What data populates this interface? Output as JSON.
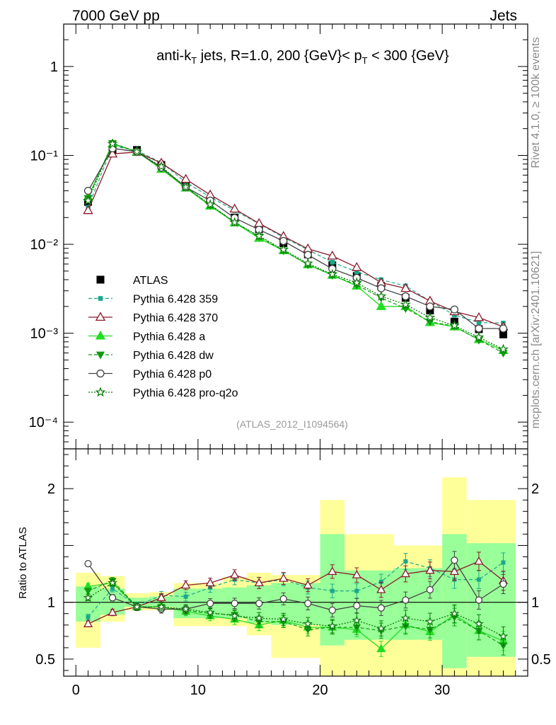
{
  "header": {
    "left": "7000 GeV pp",
    "right": "Jets"
  },
  "side_texts": {
    "rivet": "Rivet 4.1.0, ≥ 100k events",
    "mcplots": "mcplots.cern.ch [arXiv:2401.10621]"
  },
  "chart_data": [
    {
      "type": "line",
      "scale": "log",
      "title": "anti-k_T jets, R=1.0, 200 {GeV}< p_T < 300 {GeV}",
      "analysis_label": "(ATLAS_2012_I1094564)",
      "xlim": [
        -1,
        37
      ],
      "ylim": [
        5e-05,
        3
      ],
      "ytick_labels": [
        "1",
        "10⁻¹",
        "10⁻²",
        "10⁻³",
        "10⁻⁴"
      ],
      "ytick_values": [
        1,
        0.1,
        0.01,
        0.001,
        0.0001
      ],
      "x": [
        1,
        3,
        5,
        7,
        9,
        11,
        13,
        15,
        17,
        19,
        21,
        23,
        25,
        27,
        29,
        31,
        33,
        35
      ],
      "series": [
        {
          "name": "ATLAS",
          "color": "#000000",
          "marker": "square-filled",
          "line": "none",
          "values": [
            0.03,
            0.115,
            0.115,
            0.078,
            0.047,
            0.031,
            0.02,
            0.0148,
            0.0103,
            0.0077,
            0.0058,
            0.0044,
            0.0034,
            0.0025,
            0.0018,
            0.00135,
            0.00111,
            0.00097
          ]
        },
        {
          "name": "Pythia 6.428 359",
          "color": "#1aa88a",
          "marker": "square-small",
          "line": "dashed",
          "values": [
            0.026,
            0.128,
            0.113,
            0.083,
            0.05,
            0.034,
            0.024,
            0.017,
            0.012,
            0.0087,
            0.0063,
            0.0049,
            0.004,
            0.0034,
            0.0023,
            0.0016,
            0.00132,
            0.0013
          ]
        },
        {
          "name": "Pythia 6.428 370",
          "color": "#8b1a2b",
          "marker": "triangle-open",
          "line": "solid",
          "values": [
            0.024,
            0.104,
            0.109,
            0.082,
            0.054,
            0.036,
            0.025,
            0.0172,
            0.0123,
            0.0089,
            0.0074,
            0.0055,
            0.0037,
            0.0032,
            0.0023,
            0.00175,
            0.0015,
            0.00118
          ]
        },
        {
          "name": "Pythia 6.428 a",
          "color": "#22dd22",
          "marker": "triangle-filled",
          "line": "solid",
          "values": [
            0.034,
            0.135,
            0.11,
            0.07,
            0.043,
            0.027,
            0.0175,
            0.0117,
            0.0085,
            0.0059,
            0.0045,
            0.0034,
            0.002,
            0.002,
            0.00132,
            0.00118,
            0.00085,
            0.00064
          ]
        },
        {
          "name": "Pythia 6.428 dw",
          "color": "#109a10",
          "marker": "triangle-down-filled",
          "line": "dashed",
          "values": [
            0.033,
            0.137,
            0.11,
            0.072,
            0.044,
            0.0275,
            0.0178,
            0.0122,
            0.0085,
            0.0059,
            0.0045,
            0.0035,
            0.0025,
            0.0019,
            0.00135,
            0.0012,
            0.00084,
            0.0006
          ]
        },
        {
          "name": "Pythia 6.428 p0",
          "color": "#444444",
          "marker": "circle-open",
          "line": "solid",
          "values": [
            0.04,
            0.12,
            0.11,
            0.073,
            0.044,
            0.031,
            0.0198,
            0.0146,
            0.0109,
            0.0076,
            0.0053,
            0.0042,
            0.0032,
            0.0026,
            0.002,
            0.00185,
            0.00113,
            0.00113
          ]
        },
        {
          "name": "Pythia 6.428 pro-q2o",
          "color": "#0a7a0a",
          "marker": "star-open",
          "line": "dotted",
          "values": [
            0.031,
            0.135,
            0.11,
            0.075,
            0.044,
            0.028,
            0.0176,
            0.0124,
            0.0087,
            0.0061,
            0.0046,
            0.0037,
            0.0026,
            0.0021,
            0.0015,
            0.00122,
            0.0009,
            0.00066
          ]
        }
      ]
    },
    {
      "type": "line",
      "ylabel": "Ratio to ATLAS",
      "xlim": [
        -1,
        37
      ],
      "ylim": [
        0.35,
        2.35
      ],
      "ytick_labels": [
        "0.5",
        "1",
        "2"
      ],
      "ytick_values": [
        0.5,
        1,
        2
      ],
      "xtick_labels": [
        "0",
        "10",
        "20",
        "30"
      ],
      "xtick_values": [
        0,
        10,
        20,
        30
      ],
      "x": [
        1,
        3,
        5,
        7,
        9,
        11,
        13,
        15,
        17,
        19,
        21,
        23,
        25,
        27,
        29,
        31,
        33,
        35
      ],
      "band_yellow": {
        "low": [
          0.6,
          0.83,
          0.93,
          0.93,
          0.79,
          0.79,
          0.79,
          0.71,
          0.51,
          0.51,
          0.22,
          0.35,
          0.35,
          0.35,
          0.35,
          0.1,
          0.1,
          0.1
        ],
        "high": [
          1.26,
          1.23,
          1.08,
          1.09,
          1.17,
          1.17,
          1.22,
          1.26,
          1.24,
          1.24,
          1.9,
          1.6,
          1.6,
          1.5,
          1.5,
          2.1,
          1.9,
          1.9
        ]
      },
      "band_green": {
        "low": [
          0.83,
          0.89,
          0.96,
          0.96,
          0.86,
          0.86,
          0.86,
          0.82,
          0.8,
          0.8,
          0.62,
          0.67,
          0.67,
          0.67,
          0.67,
          0.42,
          0.52,
          0.52
        ],
        "high": [
          1.14,
          1.12,
          1.04,
          1.05,
          1.12,
          1.12,
          1.13,
          1.15,
          1.17,
          1.17,
          1.6,
          1.28,
          1.28,
          1.3,
          1.3,
          1.6,
          1.52,
          1.52
        ]
      },
      "series": [
        {
          "name": "Pythia 6.428 359",
          "values": [
            0.87,
            1.12,
            0.97,
            1.06,
            1.05,
            1.13,
            1.2,
            1.17,
            1.2,
            1.13,
            1.1,
            1.1,
            1.18,
            1.36,
            1.3,
            1.2,
            1.2,
            1.35
          ]
        },
        {
          "name": "Pythia 6.428 370",
          "values": [
            0.81,
            0.91,
            0.96,
            1.04,
            1.15,
            1.17,
            1.24,
            1.17,
            1.21,
            1.15,
            1.27,
            1.24,
            1.11,
            1.25,
            1.28,
            1.27,
            1.36,
            1.19
          ]
        },
        {
          "name": "Pythia 6.428 a",
          "values": [
            1.14,
            1.17,
            0.96,
            0.96,
            0.92,
            0.88,
            0.85,
            0.8,
            0.84,
            0.78,
            0.78,
            0.76,
            0.59,
            0.8,
            0.74,
            0.89,
            0.75,
            0.66
          ]
        },
        {
          "name": "Pythia 6.428 dw",
          "values": [
            1.1,
            1.19,
            0.96,
            0.96,
            0.93,
            0.9,
            0.89,
            0.83,
            0.83,
            0.76,
            0.78,
            0.78,
            0.75,
            0.79,
            0.76,
            0.87,
            0.75,
            0.62
          ]
        },
        {
          "name": "Pythia 6.428 p0",
          "values": [
            1.34,
            1.04,
            0.96,
            0.94,
            0.94,
            0.99,
            0.99,
            0.99,
            1.03,
            0.99,
            0.93,
            0.97,
            0.95,
            1.02,
            1.11,
            1.37,
            1.02,
            1.16
          ]
        },
        {
          "name": "Pythia 6.428 pro-q2o",
          "values": [
            1.04,
            1.17,
            0.96,
            0.96,
            0.94,
            0.91,
            0.88,
            0.86,
            0.85,
            0.81,
            0.79,
            0.84,
            0.77,
            0.86,
            0.83,
            0.9,
            0.81,
            0.7
          ]
        }
      ]
    }
  ]
}
